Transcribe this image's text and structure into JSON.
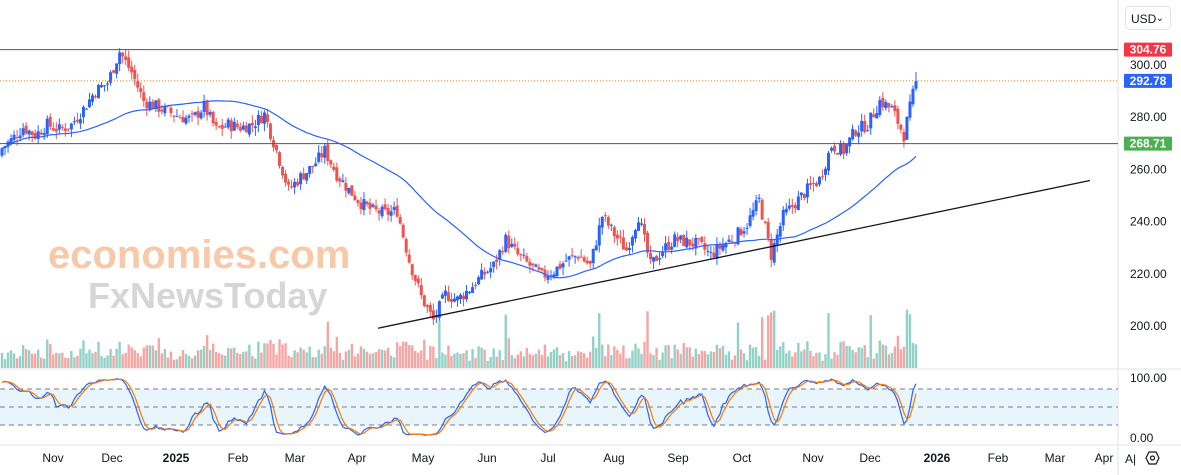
{
  "currency_selector": {
    "label": "USD",
    "chevron": "⌄"
  },
  "watermark": {
    "line1": "economies.com",
    "line2": "FxNewsToday"
  },
  "chart_data": {
    "type": "candlestick",
    "title": "",
    "y_axis": {
      "ticks": [
        "300.00",
        "280.00",
        "260.00",
        "240.00",
        "220.00",
        "200.00"
      ],
      "tick_values": [
        300,
        280,
        260,
        240,
        220,
        200
      ],
      "range": [
        192,
        310
      ]
    },
    "x_axis": {
      "ticks": [
        "Nov",
        "Dec",
        "2025",
        "Feb",
        "Mar",
        "Apr",
        "May",
        "Jun",
        "Jul",
        "Aug",
        "Sep",
        "Oct",
        "Nov",
        "Dec",
        "2026",
        "Feb",
        "Mar",
        "Apr"
      ]
    },
    "price_labels": [
      {
        "value": "304.76",
        "color": "#f23645",
        "line": "solid"
      },
      {
        "value": "292.78",
        "color": "#2962ff",
        "line": "dotted"
      },
      {
        "value": "268.71",
        "color": "#4caf50",
        "line": "solid"
      }
    ],
    "close_path": [
      266,
      270,
      275,
      272,
      276,
      274,
      276,
      282,
      289,
      292,
      304,
      296,
      285,
      283,
      281,
      279,
      278,
      283,
      274,
      276,
      275,
      276,
      280,
      266,
      251,
      256,
      260,
      266,
      257,
      251,
      246,
      243,
      242,
      243,
      224,
      210,
      201,
      211,
      209,
      213,
      218,
      222,
      232,
      226,
      222,
      218,
      220,
      224,
      226,
      222,
      241,
      234,
      228,
      241,
      222,
      228,
      232,
      231,
      230,
      226,
      230,
      233,
      238,
      247,
      226,
      241,
      246,
      251,
      255,
      268,
      266,
      274,
      276,
      285,
      282,
      272,
      292.78
    ],
    "trendline": {
      "from": {
        "date": "Apr 2025",
        "value": 198
      },
      "to": {
        "date": "Jan 2026",
        "value": 254.6
      }
    },
    "moving_average": {
      "color": "#2962ff"
    },
    "up_color": "#2962ff",
    "down_color": "#ef5350",
    "stochastic": {
      "ticks": [
        "100.00",
        "0.00"
      ],
      "levels": [
        80,
        50,
        20
      ],
      "k_color": "#2962ff",
      "d_color": "#f57c00"
    }
  },
  "bottom_icons": {
    "auto": "A|",
    "settings": "settings-icon"
  }
}
